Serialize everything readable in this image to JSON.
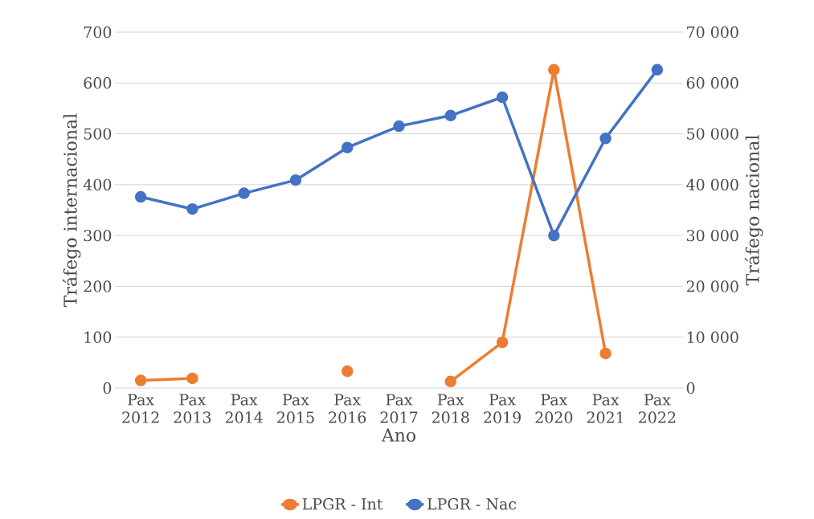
{
  "chart_data": {
    "type": "line",
    "xlabel": "Ano",
    "ylabel": "Tráfego internacional",
    "y2label": "Tráfego nacional",
    "categories": [
      "Pax 2012",
      "Pax 2013",
      "Pax 2014",
      "Pax 2015",
      "Pax 2016",
      "Pax 2017",
      "Pax 2018",
      "Pax 2019",
      "Pax 2020",
      "Pax 2021",
      "Pax 2022"
    ],
    "series": [
      {
        "name": "LPGR - Int",
        "color": "#ed7d31",
        "values": [
          15,
          19,
          null,
          null,
          33,
          null,
          13,
          90,
          626,
          68,
          null
        ]
      },
      {
        "name": "LPGR - Nac",
        "color": "#4472c4",
        "axis": "y2",
        "values": [
          37600,
          35200,
          38300,
          40900,
          47300,
          51500,
          53600,
          57200,
          30000,
          49100,
          62600
        ]
      }
    ],
    "ylim": [
      0,
      700
    ],
    "yticks": [
      0,
      100,
      200,
      300,
      400,
      500,
      600,
      700
    ],
    "y2lim": [
      0,
      70000
    ],
    "y2ticks": [
      {
        "value": 0,
        "label": "0"
      },
      {
        "value": 10000,
        "label": "10 000"
      },
      {
        "value": 20000,
        "label": "20 000"
      },
      {
        "value": 30000,
        "label": "30 000"
      },
      {
        "value": 40000,
        "label": "40 000"
      },
      {
        "value": 50000,
        "label": "50 000"
      },
      {
        "value": 60000,
        "label": "60 000"
      },
      {
        "value": 70000,
        "label": "70 000"
      }
    ],
    "grid": "y",
    "legend": "bottom",
    "marker": "circle",
    "line_style": "solid"
  }
}
